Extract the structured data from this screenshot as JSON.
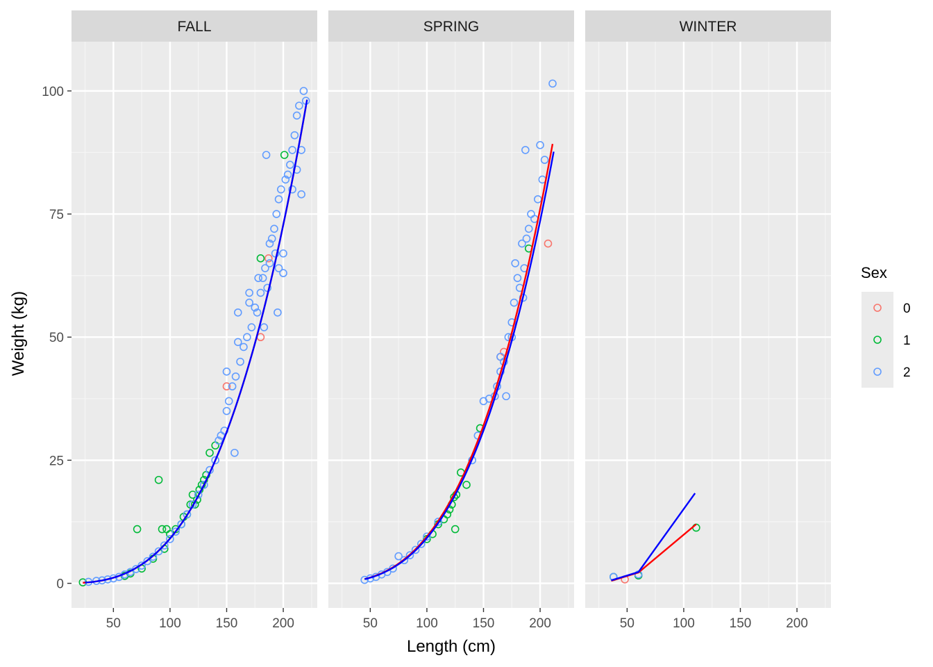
{
  "chart_data": {
    "type": "scatter",
    "xlabel": "Length (cm)",
    "ylabel": "Weight (kg)",
    "xlim": [
      13,
      230
    ],
    "ylim": [
      -5,
      110
    ],
    "x_ticks": [
      50,
      100,
      150,
      200
    ],
    "y_ticks": [
      0,
      25,
      50,
      75,
      100
    ],
    "grid": true,
    "legend": {
      "title": "Sex",
      "position": "right",
      "entries": [
        {
          "label": "0",
          "color": "#F8766D"
        },
        {
          "label": "1",
          "color": "#00BA38"
        },
        {
          "label": "2",
          "color": "#619CFF"
        }
      ]
    },
    "fit_line_colors": [
      "#FF0000",
      "#0000FF"
    ],
    "panels": [
      {
        "title": "FALL",
        "points": {
          "0": [
            [
              150,
              40
            ],
            [
              180,
              50
            ],
            [
              187,
              66
            ]
          ],
          "1": [
            [
              23,
              0.2
            ],
            [
              71,
              11
            ],
            [
              90,
              21
            ],
            [
              93,
              11
            ],
            [
              97,
              11
            ],
            [
              100,
              10
            ],
            [
              105,
              11
            ],
            [
              110,
              12
            ],
            [
              112,
              13.5
            ],
            [
              115,
              14
            ],
            [
              118,
              16
            ],
            [
              120,
              18
            ],
            [
              122,
              16
            ],
            [
              124,
              17
            ],
            [
              126,
              19
            ],
            [
              128,
              20
            ],
            [
              130,
              21
            ],
            [
              132,
              22
            ],
            [
              135,
              26.5
            ],
            [
              140,
              28
            ],
            [
              180,
              66
            ],
            [
              201,
              87
            ],
            [
              60,
              1.5
            ],
            [
              65,
              2
            ],
            [
              75,
              3
            ],
            [
              85,
              5
            ],
            [
              95,
              7
            ]
          ],
          "2": [
            [
              28,
              0.3
            ],
            [
              35,
              0.5
            ],
            [
              40,
              0.6
            ],
            [
              45,
              0.8
            ],
            [
              50,
              1
            ],
            [
              55,
              1.3
            ],
            [
              60,
              1.8
            ],
            [
              65,
              2.3
            ],
            [
              70,
              2.9
            ],
            [
              75,
              3.6
            ],
            [
              80,
              4.5
            ],
            [
              85,
              5.4
            ],
            [
              90,
              6.5
            ],
            [
              95,
              7.7
            ],
            [
              100,
              9
            ],
            [
              105,
              10.5
            ],
            [
              110,
              12
            ],
            [
              115,
              14
            ],
            [
              120,
              16
            ],
            [
              125,
              18
            ],
            [
              130,
              20
            ],
            [
              135,
              23
            ],
            [
              140,
              25
            ],
            [
              143,
              29
            ],
            [
              145,
              30
            ],
            [
              148,
              31
            ],
            [
              150,
              35
            ],
            [
              152,
              37
            ],
            [
              155,
              40
            ],
            [
              157,
              26.5
            ],
            [
              158,
              42
            ],
            [
              160,
              55
            ],
            [
              162,
              45
            ],
            [
              165,
              48
            ],
            [
              168,
              50
            ],
            [
              170,
              57
            ],
            [
              172,
              52
            ],
            [
              175,
              56
            ],
            [
              177,
              55
            ],
            [
              180,
              59
            ],
            [
              182,
              62
            ],
            [
              184,
              64
            ],
            [
              185,
              87
            ],
            [
              186,
              60
            ],
            [
              188,
              65
            ],
            [
              190,
              70
            ],
            [
              192,
              72
            ],
            [
              194,
              75
            ],
            [
              195,
              55
            ],
            [
              196,
              78
            ],
            [
              198,
              80
            ],
            [
              200,
              67
            ],
            [
              202,
              82
            ],
            [
              204,
              83
            ],
            [
              206,
              85
            ],
            [
              208,
              88
            ],
            [
              210,
              91
            ],
            [
              212,
              95
            ],
            [
              214,
              97
            ],
            [
              216,
              88
            ],
            [
              218,
              100
            ],
            [
              220,
              98
            ],
            [
              150,
              43
            ],
            [
              160,
              49
            ],
            [
              170,
              59
            ],
            [
              178,
              62
            ],
            [
              188,
              69
            ],
            [
              196,
              64
            ],
            [
              208,
              80
            ],
            [
              216,
              79
            ],
            [
              183,
              52
            ],
            [
              193,
              67
            ],
            [
              200,
              63
            ],
            [
              212,
              84
            ]
          ]
        },
        "fits": {
          "red": {
            "x": [
              23,
              220
            ],
            "a": 9.1e-06,
            "b": 3.0
          },
          "blue": {
            "x": [
              25,
              221
            ],
            "a": 9.1e-06,
            "b": 3.0
          }
        }
      },
      {
        "title": "SPRING",
        "points": {
          "0": [
            [
              165,
              46
            ],
            [
              168,
              47
            ],
            [
              207,
              69
            ]
          ],
          "1": [
            [
              100,
              9
            ],
            [
              105,
              10
            ],
            [
              110,
              12
            ],
            [
              115,
              13
            ],
            [
              118,
              14
            ],
            [
              120,
              15
            ],
            [
              122,
              16
            ],
            [
              124,
              17.5
            ],
            [
              126,
              18
            ],
            [
              130,
              22.5
            ],
            [
              135,
              20
            ],
            [
              125,
              11
            ],
            [
              147,
              31.5
            ],
            [
              190,
              68
            ]
          ],
          "2": [
            [
              45,
              0.7
            ],
            [
              50,
              1
            ],
            [
              55,
              1.3
            ],
            [
              60,
              1.8
            ],
            [
              65,
              2.3
            ],
            [
              70,
              3
            ],
            [
              75,
              5.5
            ],
            [
              80,
              4.7
            ],
            [
              85,
              5.7
            ],
            [
              90,
              6.8
            ],
            [
              95,
              8
            ],
            [
              100,
              9.5
            ],
            [
              110,
              12.5
            ],
            [
              140,
              25
            ],
            [
              145,
              30
            ],
            [
              150,
              37
            ],
            [
              155,
              37.5
            ],
            [
              160,
              38
            ],
            [
              162,
              40
            ],
            [
              165,
              43
            ],
            [
              168,
              45
            ],
            [
              170,
              38
            ],
            [
              172,
              50
            ],
            [
              175,
              53
            ],
            [
              177,
              57
            ],
            [
              178,
              65
            ],
            [
              180,
              62
            ],
            [
              182,
              60
            ],
            [
              184,
              69
            ],
            [
              186,
              64
            ],
            [
              187,
              88
            ],
            [
              188,
              70
            ],
            [
              190,
              72
            ],
            [
              192,
              75
            ],
            [
              195,
              74
            ],
            [
              198,
              78
            ],
            [
              200,
              89
            ],
            [
              202,
              82
            ],
            [
              204,
              86
            ],
            [
              211,
              101.5
            ],
            [
              175,
              50
            ],
            [
              185,
              58
            ],
            [
              165,
              46
            ]
          ]
        },
        "fits": {
          "red": {
            "x": [
              45,
              211
            ],
            "a": 9.5e-06,
            "b": 3.0
          },
          "blue": {
            "x": [
              45,
              212
            ],
            "a": 9.2e-06,
            "b": 3.0
          }
        }
      },
      {
        "title": "WINTER",
        "points": {
          "0": [
            [
              48,
              0.8
            ]
          ],
          "1": [
            [
              38,
              1.3
            ],
            [
              60,
              1.6
            ],
            [
              111,
              11.3
            ]
          ],
          "2": [
            [
              38,
              1.3
            ],
            [
              60,
              1.8
            ]
          ]
        },
        "fits": {
          "red": {
            "x": [
              36,
              60,
              111
            ],
            "y": [
              0.5,
              2.2,
              12
            ]
          },
          "blue": {
            "x": [
              36,
              60,
              110
            ],
            "y": [
              0.6,
              2.3,
              18.3
            ]
          }
        }
      }
    ]
  }
}
